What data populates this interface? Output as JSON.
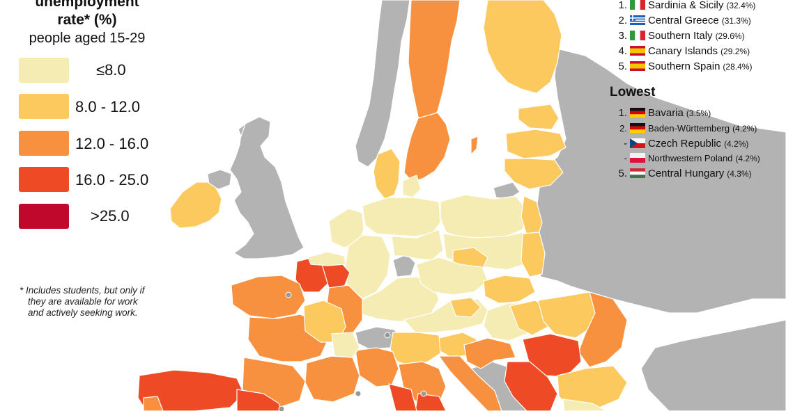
{
  "legend": {
    "title_line1": "unemployment",
    "title_line2": "rate* (%)",
    "subtitle": "people aged 15-29",
    "items": [
      {
        "label": "≤8.0",
        "color": "#f5ecb4"
      },
      {
        "label": "8.0  - 12.0",
        "color": "#fbc95e"
      },
      {
        "label": "12.0 - 16.0",
        "color": "#f79140"
      },
      {
        "label": "16.0 - 25.0",
        "color": "#ee4a25"
      },
      {
        "label": ">25.0",
        "color": "#c0082c"
      }
    ]
  },
  "footnote": {
    "line1": "* Includes students, but only if",
    "line2": "they are available for work",
    "line3": "and actively seeking work."
  },
  "ranking": {
    "highest": [
      {
        "rank": "1.",
        "name": "Sardinia & Sicily",
        "value": "(32.4%)",
        "flag": "italy"
      },
      {
        "rank": "2.",
        "name": "Central Greece",
        "value": "(31.3%)",
        "flag": "greece"
      },
      {
        "rank": "3.",
        "name": "Southern Italy",
        "value": "(29.6%)",
        "flag": "italy"
      },
      {
        "rank": "4.",
        "name": "Canary Islands",
        "value": "(29.2%)",
        "flag": "spain"
      },
      {
        "rank": "5.",
        "name": "Southern Spain",
        "value": "(28.4%)",
        "flag": "spain"
      }
    ],
    "lowest_title": "Lowest",
    "lowest": [
      {
        "rank": "1.",
        "name": "Bavaria",
        "value": "(3.5%)",
        "flag": "germany"
      },
      {
        "rank": "2.",
        "name": "Baden-Württemberg",
        "value": "(4.2%)",
        "flag": "germany"
      },
      {
        "rank": "-",
        "name": "Czech Republic",
        "value": "(4.2%)",
        "flag": "czech"
      },
      {
        "rank": "-",
        "name": "Northwestern Poland",
        "value": "(4.2%)",
        "flag": "poland"
      },
      {
        "rank": "5.",
        "name": "Central Hungary",
        "value": "(4.3%)",
        "flag": "hungary"
      }
    ]
  },
  "map_colors": {
    "sea": "#ffffff",
    "no_data": "#b3b3b3",
    "border": "#ffffff"
  }
}
